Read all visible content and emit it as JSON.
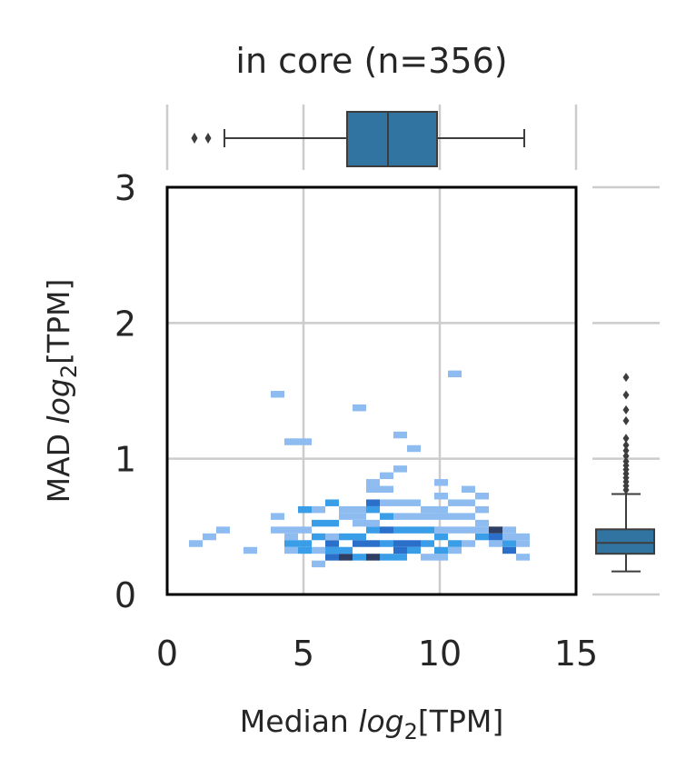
{
  "chart_data": {
    "type": "heatmap",
    "title": "in core (n=356)",
    "xlabel": {
      "prefix": "Median ",
      "italic": "log",
      "sub": "2",
      "suffix": "[TPM]"
    },
    "ylabel": {
      "prefix": "MAD ",
      "italic": "log",
      "sub": "2",
      "suffix": "[TPM]"
    },
    "xlim": [
      0,
      15
    ],
    "ylim": [
      0,
      3
    ],
    "xticks": [
      "0",
      "5",
      "10",
      "15"
    ],
    "yticks": [
      "0",
      "1",
      "2",
      "3"
    ],
    "grid": true,
    "bin_size": {
      "x": 0.5,
      "y": 0.05
    },
    "colors": {
      "low": "#8ebcf0",
      "mid": "#3a9de8",
      "high": "#2f3f63",
      "box": "#3274a1",
      "frame": "#000000"
    },
    "bins": [
      [
        0.8,
        0.35,
        1
      ],
      [
        1.3,
        0.4,
        1
      ],
      [
        1.8,
        0.45,
        1
      ],
      [
        2.8,
        0.3,
        1
      ],
      [
        3.8,
        1.45,
        1
      ],
      [
        3.8,
        0.55,
        1
      ],
      [
        3.8,
        0.45,
        1
      ],
      [
        4.3,
        0.3,
        1
      ],
      [
        4.3,
        0.4,
        1
      ],
      [
        4.3,
        0.45,
        1
      ],
      [
        4.3,
        1.1,
        1
      ],
      [
        4.8,
        1.1,
        1
      ],
      [
        4.3,
        0.35,
        2
      ],
      [
        4.8,
        0.3,
        2
      ],
      [
        4.8,
        0.35,
        2
      ],
      [
        4.8,
        0.45,
        1
      ],
      [
        4.8,
        0.6,
        2
      ],
      [
        5.3,
        0.4,
        2
      ],
      [
        5.3,
        0.5,
        2
      ],
      [
        5.3,
        0.6,
        1
      ],
      [
        5.3,
        0.2,
        1
      ],
      [
        5.3,
        0.3,
        1
      ],
      [
        5.8,
        0.25,
        3
      ],
      [
        5.8,
        0.3,
        2
      ],
      [
        5.8,
        0.35,
        3
      ],
      [
        5.8,
        0.4,
        1
      ],
      [
        5.8,
        0.5,
        2
      ],
      [
        5.8,
        0.65,
        2
      ],
      [
        6.3,
        0.25,
        4
      ],
      [
        6.3,
        0.3,
        2
      ],
      [
        6.3,
        0.4,
        2
      ],
      [
        6.3,
        0.55,
        1
      ],
      [
        6.3,
        0.6,
        1
      ],
      [
        6.8,
        0.25,
        2
      ],
      [
        6.8,
        0.35,
        3
      ],
      [
        6.8,
        0.4,
        2
      ],
      [
        6.8,
        0.5,
        1
      ],
      [
        6.8,
        0.55,
        1
      ],
      [
        6.8,
        0.6,
        1
      ],
      [
        6.8,
        1.35,
        1
      ],
      [
        7.3,
        0.25,
        4
      ],
      [
        7.3,
        0.35,
        3
      ],
      [
        7.3,
        0.45,
        2
      ],
      [
        7.3,
        0.5,
        1
      ],
      [
        7.3,
        0.6,
        2
      ],
      [
        7.3,
        0.65,
        3
      ],
      [
        7.3,
        0.75,
        1
      ],
      [
        7.3,
        0.8,
        1
      ],
      [
        7.8,
        0.25,
        2
      ],
      [
        7.8,
        0.35,
        2
      ],
      [
        7.8,
        0.45,
        3
      ],
      [
        7.8,
        0.55,
        2
      ],
      [
        7.8,
        0.65,
        1
      ],
      [
        7.8,
        0.75,
        1
      ],
      [
        7.8,
        0.85,
        1
      ],
      [
        8.3,
        0.25,
        2
      ],
      [
        8.3,
        0.3,
        3
      ],
      [
        8.3,
        0.35,
        3
      ],
      [
        8.3,
        0.45,
        2
      ],
      [
        8.3,
        0.55,
        1
      ],
      [
        8.3,
        0.65,
        1
      ],
      [
        8.3,
        0.9,
        1
      ],
      [
        8.3,
        1.15,
        1
      ],
      [
        8.8,
        0.3,
        2
      ],
      [
        8.8,
        0.35,
        3
      ],
      [
        8.8,
        0.45,
        2
      ],
      [
        8.8,
        0.55,
        1
      ],
      [
        8.8,
        0.65,
        1
      ],
      [
        8.8,
        1.05,
        1
      ],
      [
        9.3,
        0.25,
        1
      ],
      [
        9.3,
        0.35,
        2
      ],
      [
        9.3,
        0.45,
        2
      ],
      [
        9.3,
        0.55,
        1
      ],
      [
        9.3,
        0.6,
        1
      ],
      [
        9.8,
        0.25,
        1
      ],
      [
        9.8,
        0.3,
        2
      ],
      [
        9.8,
        0.4,
        2
      ],
      [
        9.8,
        0.45,
        1
      ],
      [
        9.8,
        0.55,
        1
      ],
      [
        9.8,
        0.6,
        1
      ],
      [
        9.8,
        0.7,
        1
      ],
      [
        9.8,
        0.8,
        1
      ],
      [
        10.3,
        0.3,
        1
      ],
      [
        10.3,
        0.35,
        2
      ],
      [
        10.3,
        0.45,
        1
      ],
      [
        10.3,
        0.55,
        1
      ],
      [
        10.3,
        0.65,
        1
      ],
      [
        10.3,
        1.6,
        1
      ],
      [
        10.8,
        0.35,
        1
      ],
      [
        10.8,
        0.45,
        1
      ],
      [
        10.8,
        0.55,
        1
      ],
      [
        10.8,
        0.65,
        1
      ],
      [
        10.8,
        0.75,
        1
      ],
      [
        11.3,
        0.4,
        2
      ],
      [
        11.3,
        0.45,
        1
      ],
      [
        11.3,
        0.5,
        1
      ],
      [
        11.3,
        0.6,
        1
      ],
      [
        11.3,
        0.7,
        1
      ],
      [
        11.8,
        0.35,
        1
      ],
      [
        11.8,
        0.4,
        3
      ],
      [
        11.8,
        0.45,
        4
      ],
      [
        12.3,
        0.3,
        3
      ],
      [
        12.3,
        0.35,
        2
      ],
      [
        12.3,
        0.4,
        1
      ],
      [
        12.3,
        0.45,
        1
      ],
      [
        12.8,
        0.25,
        1
      ],
      [
        12.8,
        0.35,
        1
      ],
      [
        12.8,
        0.4,
        1
      ]
    ],
    "marginal_x": {
      "whisker_low": 2.1,
      "q1": 6.6,
      "median": 8.1,
      "q3": 9.9,
      "whisker_high": 13.1,
      "outliers": [
        1.0,
        1.5
      ]
    },
    "marginal_y": {
      "whisker_low": 0.17,
      "q1": 0.3,
      "median": 0.38,
      "q3": 0.48,
      "whisker_high": 0.74,
      "outliers": [
        0.77,
        0.8,
        0.83,
        0.86,
        0.89,
        0.92,
        0.95,
        0.98,
        1.02,
        1.06,
        1.1,
        1.15,
        1.28,
        1.36,
        1.47,
        1.6
      ]
    }
  }
}
